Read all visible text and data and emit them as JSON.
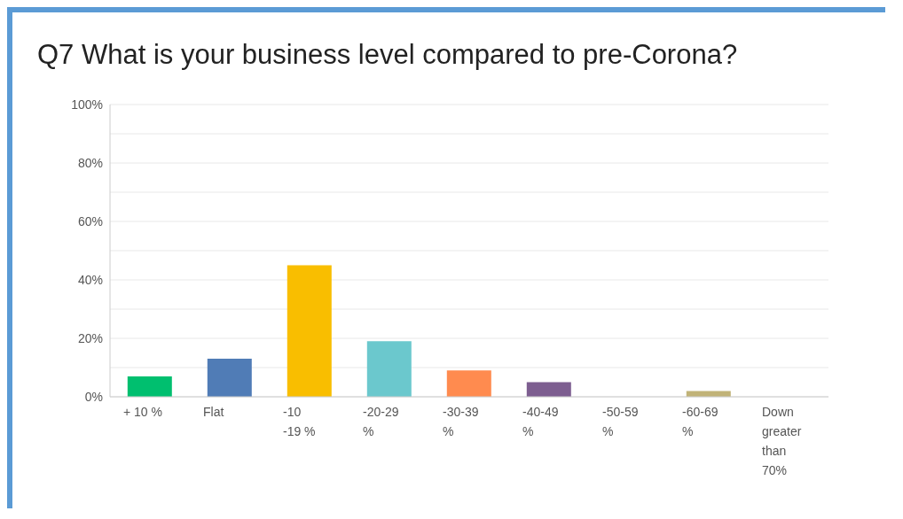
{
  "chart_data": {
    "type": "bar",
    "title": "Q7 What is your business level compared to pre-Corona?",
    "categories": [
      "+ 10 %",
      "Flat",
      "-10 -19 %",
      "-20-29 %",
      "-30-39 %",
      "-40-49 %",
      "-50-59 %",
      "-60-69 %",
      "Down greater than 70%"
    ],
    "values": [
      7,
      13,
      45,
      19,
      9,
      5,
      0,
      2,
      0
    ],
    "colors": [
      "#00bf6f",
      "#507cb6",
      "#f9be00",
      "#6bc8cd",
      "#ff8b4f",
      "#7d5e90",
      "#dd8fb6",
      "#c1b378",
      "#a8a8a8"
    ],
    "ylim": [
      0,
      100
    ],
    "yticks": [
      {
        "value": 0,
        "label": "0%"
      },
      {
        "value": 10,
        "label": null
      },
      {
        "value": 20,
        "label": "20%"
      },
      {
        "value": 30,
        "label": null
      },
      {
        "value": 40,
        "label": "40%"
      },
      {
        "value": 50,
        "label": null
      },
      {
        "value": 60,
        "label": "60%"
      },
      {
        "value": 70,
        "label": null
      },
      {
        "value": 80,
        "label": "80%"
      },
      {
        "value": 90,
        "label": null
      },
      {
        "value": 100,
        "label": "100%"
      }
    ],
    "grid": "y"
  }
}
